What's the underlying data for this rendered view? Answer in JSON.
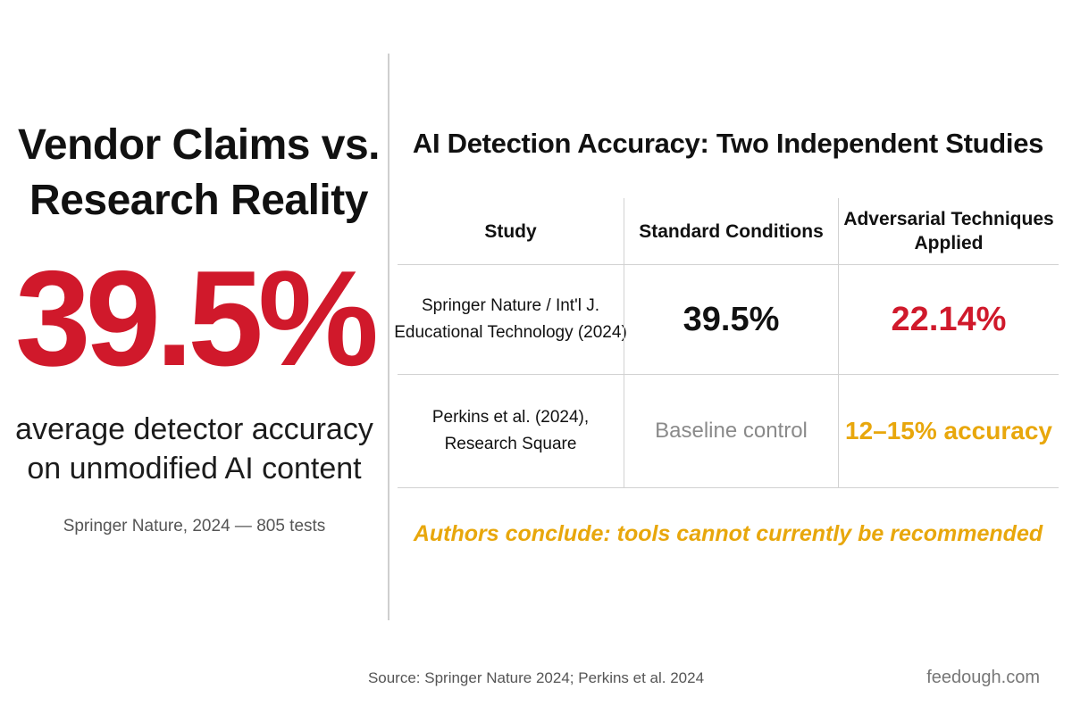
{
  "left": {
    "title_line1": "Vendor Claims vs.",
    "title_line2": "Research Reality",
    "big_stat": "39.5%",
    "caption_line1": "average detector accuracy",
    "caption_line2": "on unmodified AI content",
    "source": "Springer Nature, 2024 — 805 tests"
  },
  "right": {
    "title": "AI Detection Accuracy: Two Independent Studies",
    "table": {
      "headers": [
        "Study",
        "Standard Conditions",
        "Adversarial Techniques Applied"
      ],
      "header3_line1": "Adversarial Techniques",
      "header3_line2": "Applied",
      "rows": [
        {
          "study_line1": "Springer Nature / Int'l J.",
          "study_line2": "Educational Technology (2024)",
          "standard": "39.5%",
          "adversarial": "22.14%"
        },
        {
          "study_line1": "Perkins et al. (2024),",
          "study_line2": "Research Square",
          "standard": "Baseline control",
          "adversarial": "12–15% accuracy"
        }
      ]
    },
    "conclusion": "Authors conclude: tools cannot currently be recommended"
  },
  "footer": {
    "source": "Source: Springer Nature 2024; Perkins et al. 2024",
    "brand": "feedough.com"
  },
  "colors": {
    "accent_red": "#d0192b",
    "accent_gold": "#e8a70c",
    "muted_gray": "#8a8a8a"
  }
}
